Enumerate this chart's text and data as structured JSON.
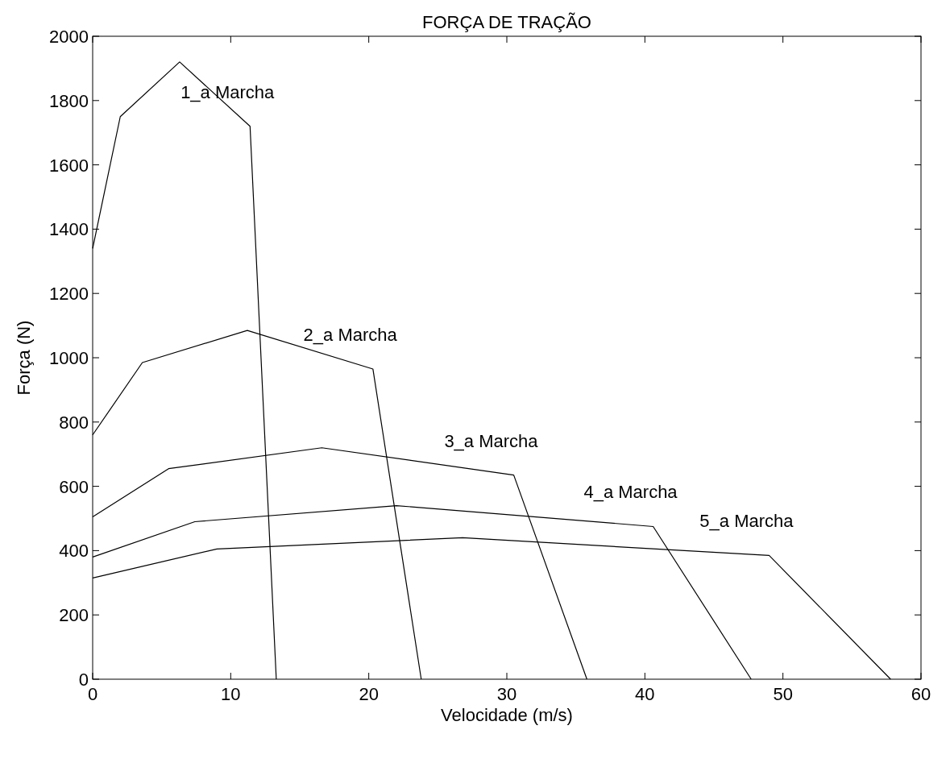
{
  "chart_data": {
    "type": "line",
    "title": "FORÇA DE TRAÇÃO",
    "xlabel": "Velocidade (m/s)",
    "ylabel": "Força (N)",
    "xlim": [
      0,
      60
    ],
    "xticks": [
      0,
      10,
      20,
      30,
      40,
      50,
      60
    ],
    "ylim": [
      0,
      2000
    ],
    "yticks": [
      0,
      200,
      400,
      600,
      800,
      1000,
      1200,
      1400,
      1600,
      1800,
      2000
    ],
    "grid": false,
    "series": [
      {
        "name": "1_a Marcha",
        "color": "#000000",
        "x": [
          0,
          2,
          6.3,
          11.4,
          13.3
        ],
        "values": [
          1340,
          1750,
          1920,
          1720,
          0
        ]
      },
      {
        "name": "2_a Marcha",
        "color": "#000000",
        "x": [
          0,
          3.6,
          11.2,
          20.3,
          23.8
        ],
        "values": [
          760,
          985,
          1085,
          965,
          0
        ]
      },
      {
        "name": "3_a Marcha",
        "color": "#000000",
        "x": [
          0,
          5.5,
          16.6,
          30.5,
          35.8
        ],
        "values": [
          505,
          655,
          720,
          635,
          0
        ]
      },
      {
        "name": "4_a Marcha",
        "color": "#000000",
        "x": [
          0,
          7.4,
          22,
          40.6,
          47.7
        ],
        "values": [
          380,
          490,
          540,
          475,
          0
        ]
      },
      {
        "name": "5_a Marcha",
        "color": "#000000",
        "x": [
          0,
          9,
          26.8,
          49,
          57.8
        ],
        "values": [
          315,
          405,
          440,
          385,
          0
        ]
      }
    ]
  }
}
